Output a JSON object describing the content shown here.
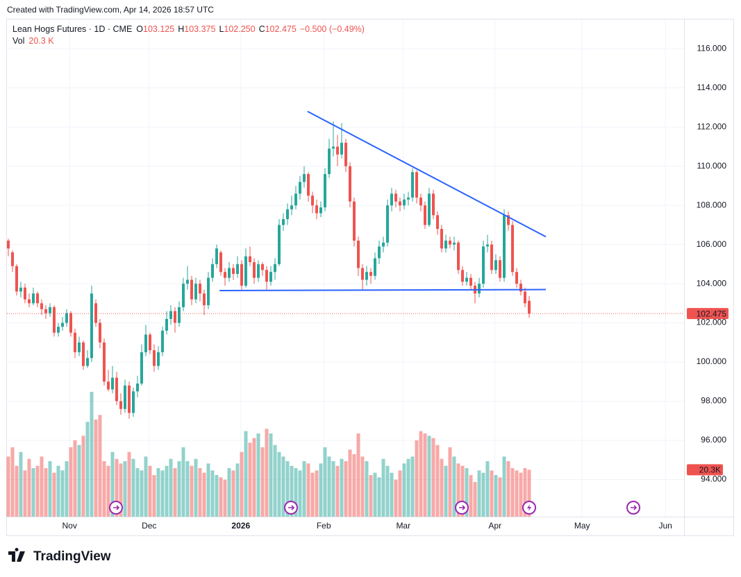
{
  "header": {
    "created": "Created with TradingView.com, Apr 14, 2026 18:57 UTC",
    "symbol": "Lean Hogs Futures · 1D · CME",
    "ohlc": [
      {
        "key": "O",
        "value": "103.125"
      },
      {
        "key": "H",
        "value": "103.375"
      },
      {
        "key": "L",
        "value": "102.250"
      },
      {
        "key": "C",
        "value": "102.475"
      }
    ],
    "change": "−0.500 (−0.49%)",
    "volume_key": "Vol",
    "volume_value": "20.3 K"
  },
  "footer": {
    "logo": "TradingView"
  },
  "chart_data": {
    "type": "candlestick",
    "up_color": "#26a69a",
    "down_color": "#ef5350",
    "grid": true,
    "xlim": [
      -0.33,
      162.17
    ],
    "xticks": [
      {
        "value": 14.7,
        "label": "Nov"
      },
      {
        "value": 33.8,
        "label": "Dec"
      },
      {
        "value": 55.8,
        "label": "2026"
      },
      {
        "value": 75.7,
        "label": "Feb"
      },
      {
        "value": 94.8,
        "label": "Mar"
      },
      {
        "value": 116.8,
        "label": "Apr"
      },
      {
        "value": 137.7,
        "label": "May"
      },
      {
        "value": 157.7,
        "label": "Jun"
      }
    ],
    "ylim": [
      92.1,
      117.5
    ],
    "yticks": [
      {
        "value": 94,
        "label": "94.000"
      },
      {
        "value": 96,
        "label": "96.000"
      },
      {
        "value": 98,
        "label": "98.000"
      },
      {
        "value": 100,
        "label": "100.000"
      },
      {
        "value": 102,
        "label": "102.000"
      },
      {
        "value": 104,
        "label": "104.000"
      },
      {
        "value": 106,
        "label": "106.000"
      },
      {
        "value": 108,
        "label": "108.000"
      },
      {
        "value": 110,
        "label": "110.000"
      },
      {
        "value": 112,
        "label": "112.000"
      },
      {
        "value": 114,
        "label": "114.000"
      },
      {
        "value": 116,
        "label": "116.000"
      }
    ],
    "open": [
      106.2,
      105.6,
      104.9,
      103.6,
      103.8,
      103.2,
      103.0,
      103.5,
      103.0,
      102.7,
      102.5,
      102.8,
      101.5,
      101.8,
      102.0,
      102.5,
      101.5,
      100.5,
      101.0,
      99.8,
      100.2,
      103.0,
      102.0,
      101.0,
      99.0,
      98.6,
      99.2,
      98.0,
      97.6,
      98.8,
      97.4,
      98.5,
      98.9,
      100.5,
      101.4,
      100.6,
      99.8,
      100.5,
      101.6,
      102.2,
      102.6,
      102.0,
      102.8,
      104.0,
      104.2,
      103.2,
      104.0,
      103.5,
      102.9,
      104.3,
      105.0,
      105.6,
      104.6,
      104.3,
      104.8,
      104.5,
      105.0,
      103.9,
      105.4,
      105.1,
      104.3,
      105.0,
      104.7,
      104.1,
      104.6,
      105.0,
      107.0,
      107.3,
      107.8,
      108.0,
      108.6,
      109.2,
      109.6,
      108.5,
      108.0,
      107.6,
      107.9,
      109.6,
      110.9,
      111.0,
      110.6,
      111.2,
      110.0,
      108.2,
      106.2,
      104.8,
      104.2,
      104.6,
      104.4,
      105.3,
      105.9,
      106.1,
      108.0,
      108.6,
      108.2,
      108.0,
      108.3,
      108.4,
      109.7,
      108.4,
      108.0,
      107.0,
      108.6,
      107.5,
      106.8,
      105.8,
      106.2,
      106.0,
      106.1,
      104.7,
      104.1,
      104.3,
      103.9,
      103.5,
      104.0,
      105.9,
      106.0,
      104.7,
      105.2,
      104.3,
      107.5,
      107.0,
      104.6,
      104.0,
      103.6,
      103.125
    ],
    "high": [
      106.3,
      105.7,
      105.0,
      104.1,
      104.0,
      103.5,
      103.8,
      103.6,
      103.2,
      102.9,
      103.0,
      102.9,
      102.0,
      102.3,
      102.7,
      102.6,
      101.7,
      101.3,
      101.1,
      100.6,
      103.9,
      103.2,
      102.2,
      101.2,
      99.6,
      99.8,
      99.5,
      98.4,
      99.1,
      99.0,
      98.7,
      99.3,
      100.9,
      101.9,
      101.5,
      100.9,
      100.8,
      101.8,
      102.6,
      102.9,
      102.8,
      103.1,
      104.3,
      104.9,
      104.4,
      104.3,
      104.2,
      103.7,
      104.6,
      105.3,
      106.0,
      105.7,
      104.8,
      105.1,
      105.0,
      105.4,
      105.2,
      105.8,
      105.9,
      105.3,
      105.2,
      105.1,
      104.9,
      104.9,
      105.3,
      107.3,
      107.6,
      108.1,
      108.5,
      109.0,
      109.5,
      110.0,
      109.7,
      108.7,
      108.3,
      108.2,
      109.9,
      111.4,
      112.3,
      111.6,
      112.2,
      111.4,
      110.2,
      108.4,
      106.4,
      105.0,
      104.9,
      104.8,
      105.6,
      106.2,
      106.4,
      108.3,
      108.9,
      108.8,
      108.4,
      108.6,
      108.7,
      109.9,
      109.8,
      108.6,
      108.2,
      108.9,
      108.8,
      107.7,
      107.0,
      106.5,
      106.4,
      106.4,
      106.2,
      104.9,
      104.6,
      104.5,
      104.1,
      104.3,
      106.2,
      106.5,
      106.2,
      105.5,
      105.4,
      107.8,
      107.7,
      107.2,
      104.8,
      104.2,
      103.8,
      103.375
    ],
    "low": [
      105.4,
      104.6,
      103.4,
      103.3,
      103.0,
      102.8,
      102.9,
      102.8,
      102.4,
      102.2,
      102.3,
      101.3,
      101.3,
      101.6,
      101.8,
      101.3,
      100.2,
      100.3,
      99.6,
      99.7,
      100.0,
      101.8,
      100.7,
      98.8,
      98.5,
      98.4,
      97.8,
      97.3,
      97.4,
      97.1,
      97.2,
      98.2,
      98.8,
      100.3,
      100.4,
      99.5,
      99.6,
      100.3,
      101.4,
      101.9,
      101.5,
      101.8,
      102.6,
      103.7,
      102.9,
      103.0,
      103.1,
      102.4,
      102.7,
      104.1,
      104.8,
      104.4,
      103.9,
      104.1,
      104.2,
      104.3,
      103.7,
      103.8,
      104.9,
      104.0,
      104.1,
      104.4,
      103.7,
      103.9,
      104.2,
      104.9,
      106.7,
      107.0,
      107.5,
      107.8,
      108.3,
      108.9,
      108.2,
      107.6,
      107.3,
      107.4,
      107.7,
      109.4,
      110.5,
      110.0,
      110.4,
      109.7,
      107.9,
      105.9,
      104.4,
      103.7,
      103.9,
      104.0,
      104.2,
      105.0,
      105.6,
      105.9,
      107.7,
      107.9,
      107.7,
      107.8,
      108.0,
      108.2,
      108.1,
      107.7,
      106.8,
      106.9,
      107.3,
      106.5,
      105.6,
      105.6,
      105.8,
      105.7,
      104.5,
      103.9,
      103.9,
      103.7,
      103.0,
      103.3,
      103.8,
      105.6,
      104.5,
      104.5,
      104.1,
      104.1,
      106.7,
      104.4,
      103.8,
      103.4,
      102.8,
      102.25
    ],
    "close": [
      105.8,
      104.9,
      103.6,
      103.8,
      103.2,
      103.0,
      103.5,
      103.0,
      102.7,
      102.5,
      102.8,
      101.5,
      101.8,
      102.0,
      102.5,
      101.5,
      100.5,
      101.0,
      99.8,
      100.2,
      103.5,
      102.0,
      101.0,
      99.0,
      98.6,
      99.2,
      98.0,
      97.6,
      98.8,
      97.4,
      98.5,
      98.9,
      100.5,
      101.4,
      100.6,
      99.8,
      100.5,
      101.6,
      102.2,
      102.6,
      102.0,
      102.8,
      104.0,
      104.2,
      103.2,
      104.0,
      103.5,
      102.9,
      104.3,
      105.0,
      105.8,
      104.6,
      104.3,
      104.8,
      104.5,
      105.0,
      103.9,
      105.4,
      105.1,
      104.3,
      105.0,
      104.7,
      104.1,
      104.6,
      105.0,
      107.0,
      107.3,
      107.8,
      108.0,
      108.6,
      109.2,
      109.6,
      108.5,
      108.0,
      107.6,
      107.9,
      109.6,
      110.9,
      111.0,
      110.6,
      111.2,
      110.0,
      108.2,
      106.2,
      104.8,
      104.2,
      104.6,
      104.4,
      105.3,
      105.9,
      106.1,
      108.0,
      108.6,
      108.2,
      108.0,
      108.3,
      108.4,
      109.7,
      108.4,
      108.0,
      107.0,
      108.6,
      107.5,
      106.8,
      105.8,
      106.2,
      106.0,
      106.1,
      104.7,
      104.1,
      104.3,
      103.9,
      103.5,
      104.0,
      105.9,
      106.0,
      104.7,
      105.2,
      104.3,
      107.5,
      107.0,
      104.6,
      104.0,
      103.6,
      103.0,
      102.475
    ],
    "volume": [
      26,
      30,
      22,
      28,
      20,
      25,
      21,
      22,
      26,
      21,
      24,
      19,
      22,
      20,
      24,
      30,
      33,
      31,
      35,
      41,
      54,
      42,
      44,
      24,
      22,
      28,
      25,
      23,
      24,
      28,
      25,
      21,
      20,
      26,
      22,
      18,
      21,
      20,
      22,
      25,
      21,
      24,
      30,
      24,
      22,
      25,
      21,
      19,
      23,
      20,
      18,
      17,
      16,
      21,
      20,
      23,
      28,
      37,
      32,
      34,
      36,
      30,
      38,
      36,
      31,
      28,
      26,
      24,
      22,
      21,
      20,
      24,
      23,
      19,
      20,
      23,
      30,
      26,
      24,
      22,
      25,
      24,
      29,
      27,
      36,
      26,
      24,
      18,
      19,
      17,
      25,
      22,
      19,
      16,
      20,
      23,
      25,
      26,
      33,
      37,
      36,
      35,
      34,
      31,
      25,
      22,
      30,
      26,
      23,
      22,
      21,
      18,
      15,
      20,
      19,
      24,
      20,
      18,
      17,
      26,
      24,
      21,
      20,
      19,
      21,
      20.3
    ],
    "volume_axis_label": "20.3K",
    "trendlines": [
      {
        "color": "#2962ff",
        "x": [
          71.8,
          129
        ],
        "y": [
          112.8,
          106.4
        ]
      },
      {
        "color": "#2962ff",
        "x": [
          50.7,
          129
        ],
        "y": [
          103.65,
          103.7
        ]
      }
    ]
  }
}
